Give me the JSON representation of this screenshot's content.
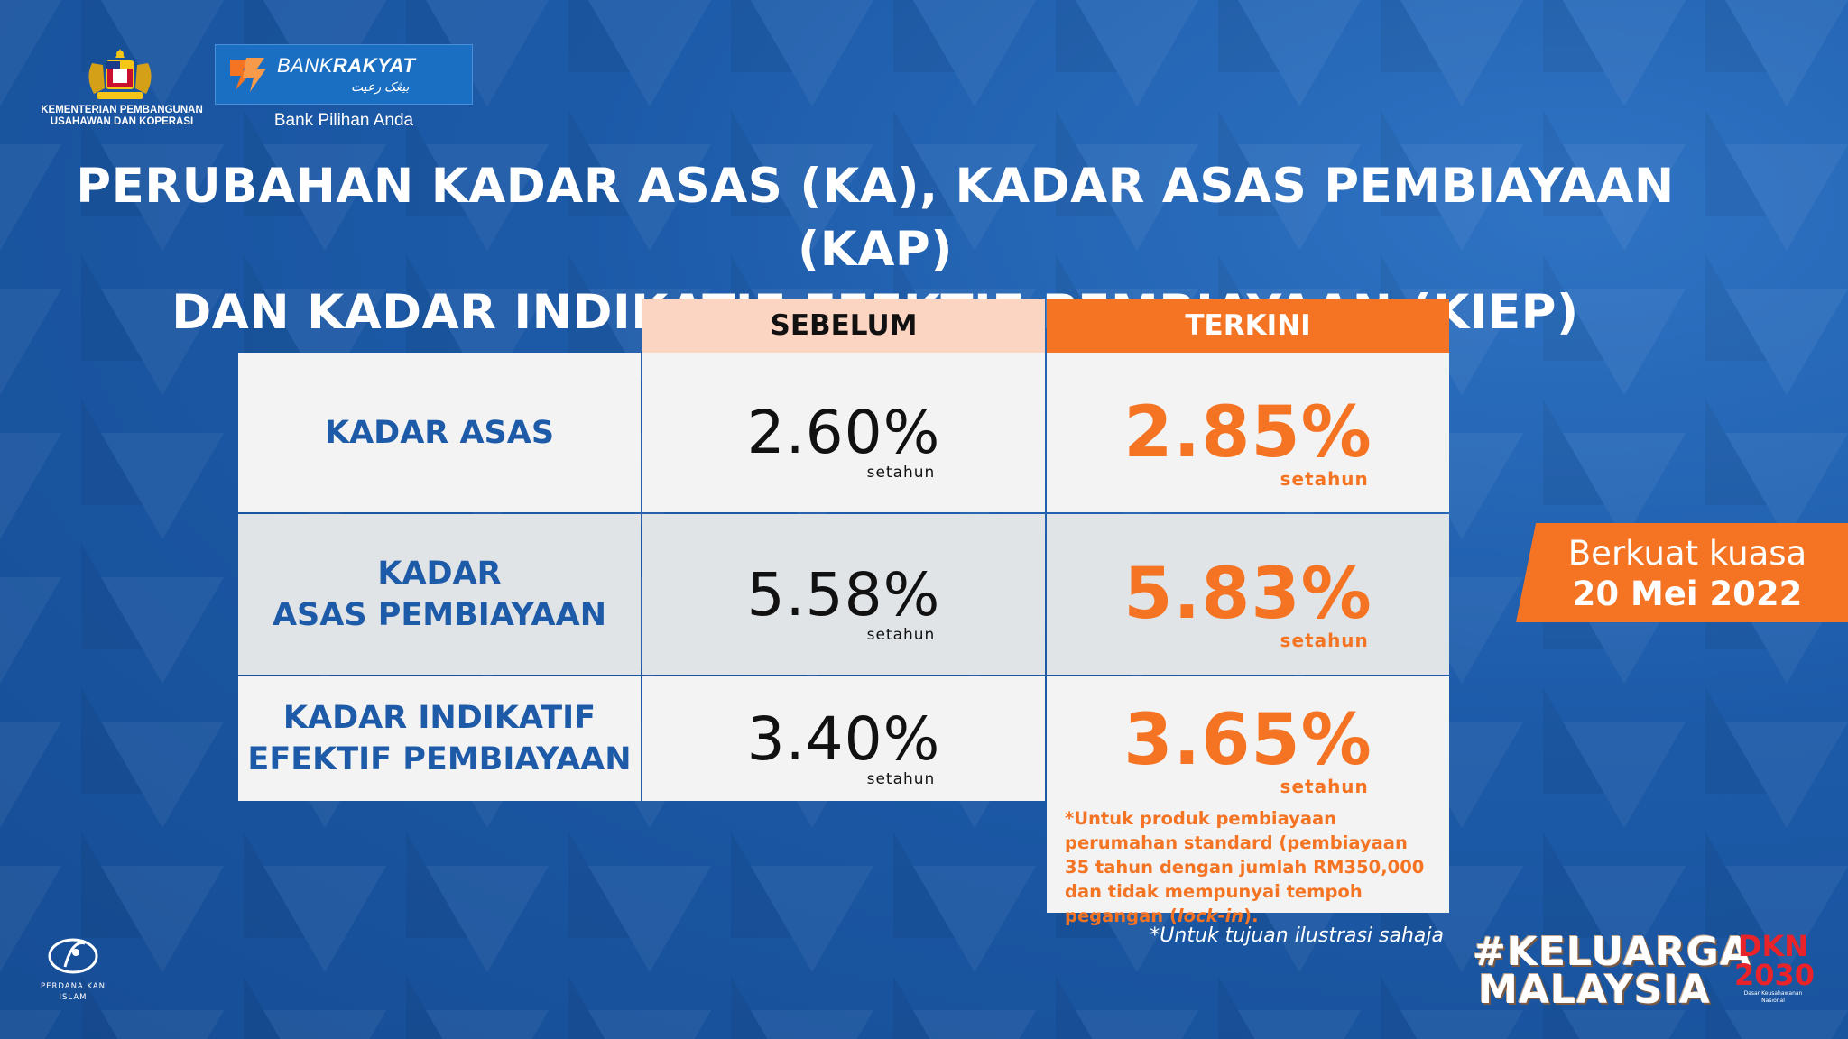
{
  "header": {
    "ministry": "KEMENTERIAN PEMBANGUNAN USAHAWAN DAN KOPERASI",
    "bank_name_light": "BANK",
    "bank_name_bold": "RAKYAT",
    "bank_jawi": "بيڠک رعيت",
    "bank_tagline": "Bank Pilihan Anda"
  },
  "title": {
    "line1": "PERUBAHAN KADAR ASAS (KA), KADAR ASAS PEMBIAYAAN (KAP)",
    "line2": "DAN KADAR INDIKATIF EFEKTIF PEMBIAYAAN (KIEP)"
  },
  "table": {
    "col_before": "SEBELUM",
    "col_current": "TERKINI",
    "rows": [
      {
        "label1": "KADAR ASAS",
        "label2": "",
        "before": "2.60%",
        "current": "2.85%",
        "unit": "setahun"
      },
      {
        "label1": "KADAR",
        "label2": "ASAS PEMBIAYAAN",
        "before": "5.58%",
        "current": "5.83%",
        "unit": "setahun"
      },
      {
        "label1": "KADAR INDIKATIF",
        "label2": "EFEKTIF PEMBIAYAAN",
        "before": "3.40%",
        "current": "3.65%",
        "unit": "setahun"
      }
    ],
    "note_pre": "*Untuk produk pembiayaan perumahan standard (pembiayaan 35 tahun dengan jumlah RM350,000 dan tidak mempunyai tempoh pegangan (",
    "note_italic": "lock-in",
    "note_post": ")."
  },
  "illustration_note": "*Untuk tujuan ilustrasi sahaja",
  "effective": {
    "line1": "Berkuat kuasa",
    "line2": "20 Mei 2022"
  },
  "footer": {
    "perdana": "PERDANA KAN ISLAM",
    "keluarga1": "#KELUARGA",
    "keluarga2": "MALAYSIA",
    "dkn1": "DKN",
    "dkn2": "2030",
    "dkn_small": "Dasar Keusahawanan Nasional"
  },
  "colors": {
    "background": "#1a57a6",
    "orange": "#f47423",
    "peach": "#fcd5c2",
    "label_blue": "#1d5ba8"
  }
}
